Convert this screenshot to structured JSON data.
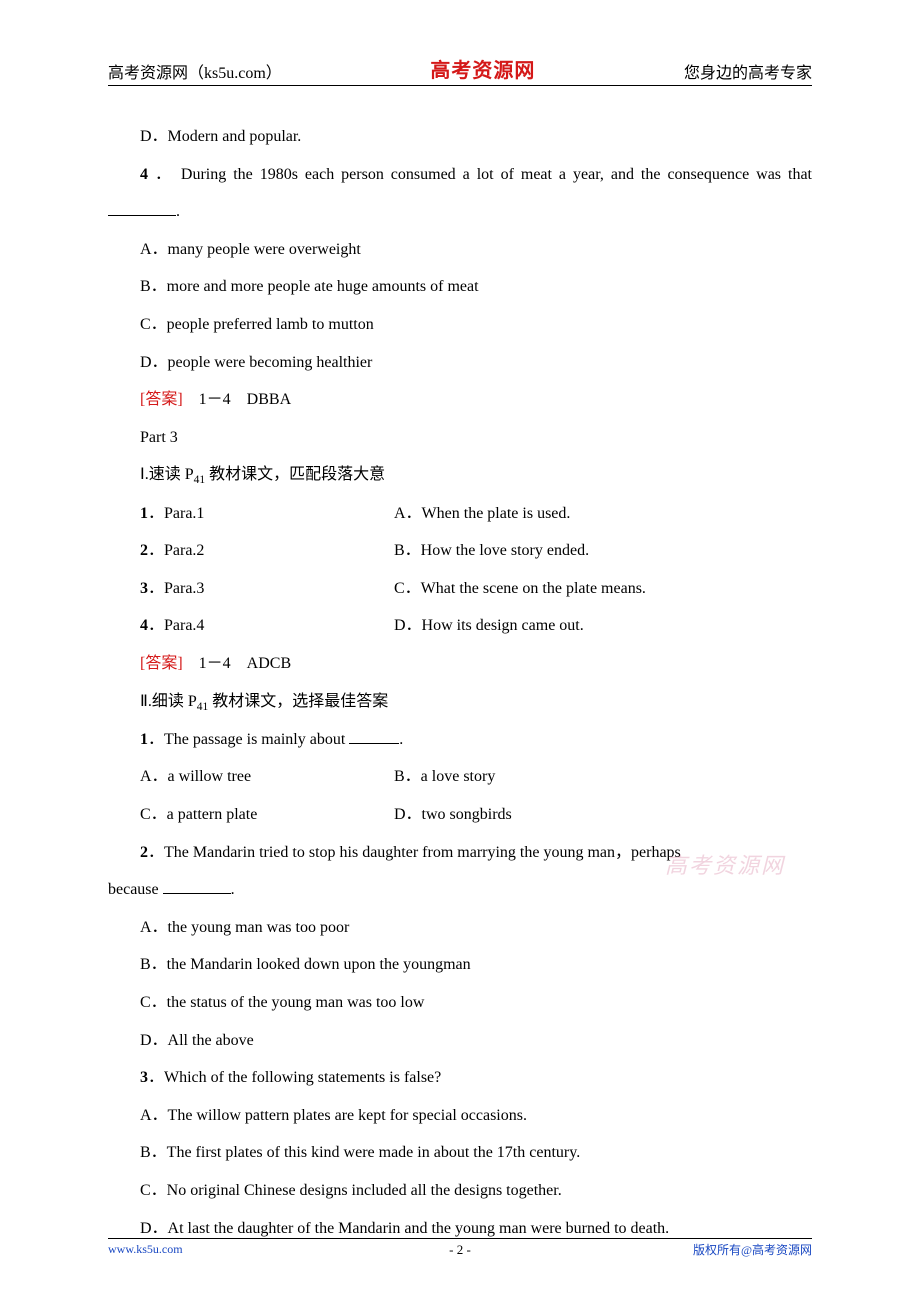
{
  "header": {
    "left": "高考资源网（ks5u.com）",
    "center": "高考资源网",
    "right": "您身边的高考专家"
  },
  "colors": {
    "answer_label": "#d41818",
    "header_center": "#d41818",
    "footer_link": "#1847c2",
    "text": "#000000",
    "page_bg": "#ffffff",
    "watermark": "rgba(206,102,140,0.28)"
  },
  "q3": {
    "optD": "D．Modern and popular."
  },
  "q4": {
    "stem_pre": "4 ． During the 1980s each person consumed a lot of meat a year, and the consequence was that",
    "stem_post": ".",
    "optA": "A．many people were overweight",
    "optB": "B．more and more people ate huge amounts of meat",
    "optC": "C．people preferred lamb to mutton",
    "optD": "D．people were becoming healthier"
  },
  "ans_part2": {
    "label": "[答案]",
    "value": "　1－4　DBBA"
  },
  "part3": {
    "title": "Part 3",
    "sec1_pre": "Ⅰ.速读 P",
    "sec1_sub": "41",
    "sec1_post": " 教材课文，匹配段落大意",
    "match": [
      {
        "num": "1",
        "l": "．Para.1",
        "r": "A．When the plate is used."
      },
      {
        "num": "2",
        "l": "．Para.2",
        "r": "B．How the love story ended."
      },
      {
        "num": "3",
        "l": "．Para.3",
        "r": "C．What the scene on the plate means."
      },
      {
        "num": "4",
        "l": "．Para.4",
        "r": "D．How its design came out."
      }
    ],
    "ans1": {
      "label": "[答案]",
      "value": "　1－4　ADCB"
    },
    "sec2_pre": "Ⅱ.细读 P",
    "sec2_sub": "41",
    "sec2_post": " 教材课文，选择最佳答案"
  },
  "q_p3_1": {
    "num": "1",
    "stem": "．The passage is mainly about ",
    "post": ".",
    "optA": "A．a willow tree",
    "optB": "B．a love story",
    "optC": "C．a pattern plate",
    "optD": "D．two songbirds"
  },
  "q_p3_2": {
    "num": "2",
    "stem_line1": "．The Mandarin tried to stop his daughter from marrying the young man，perhaps",
    "stem_line2_pre": "because ",
    "post": ".",
    "optA": "A．the young man was too poor",
    "optB": "B．the Mandarin looked down upon the youngman",
    "optC": "C．the status of the young man was too low",
    "optD": "D．All the above"
  },
  "q_p3_3": {
    "num": "3",
    "stem": "．Which of the following statements is false?",
    "optA": "A．The willow pattern plates are kept for special occasions.",
    "optB": "B．The first plates of this kind were made in about the 17th century.",
    "optC": "C．No original Chinese designs included all the designs together.",
    "optD": "D．At last the daughter of the Mandarin and the young man were burned to death."
  },
  "watermark": "高考资源网",
  "footer": {
    "left": "www.ks5u.com",
    "center": "- 2 -",
    "right": "版权所有@高考资源网"
  }
}
